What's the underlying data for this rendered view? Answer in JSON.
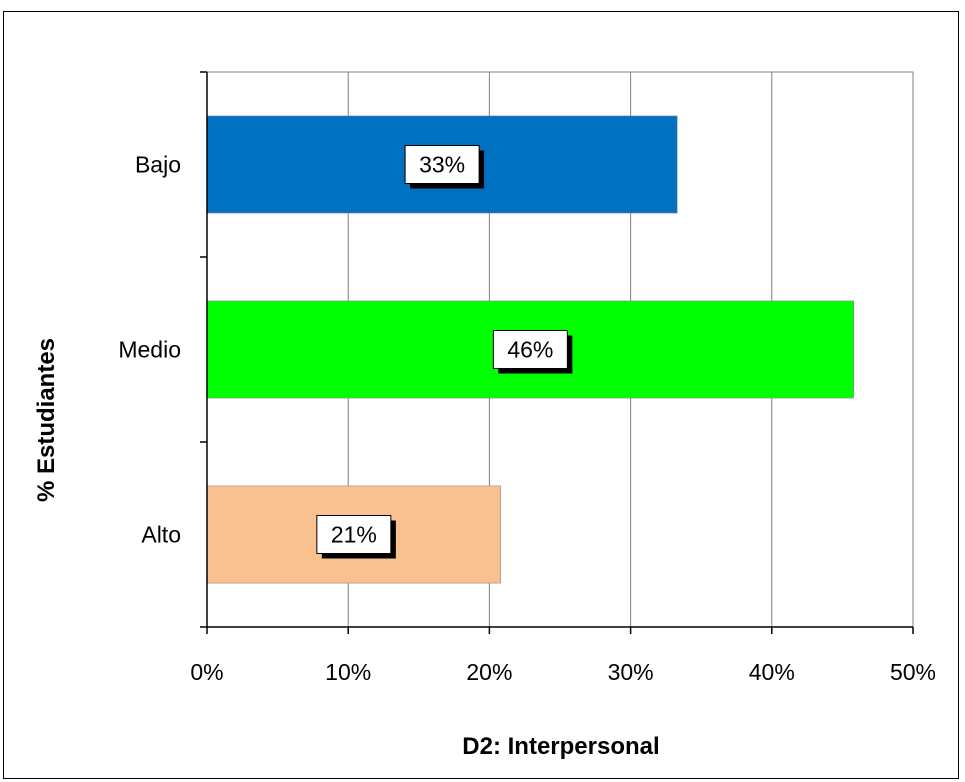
{
  "chart_data": {
    "type": "bar",
    "orientation": "horizontal",
    "categories": [
      "Bajo",
      "Medio",
      "Alto"
    ],
    "values": [
      33.3,
      45.8,
      20.8
    ],
    "data_labels": [
      "33%",
      "46%",
      "21%"
    ],
    "colors": [
      "#0070C0",
      "#00FF00",
      "#F9C090"
    ],
    "xlabel": "D2: Interpersonal",
    "ylabel": "% Estudiantes",
    "xlim": [
      0,
      50
    ],
    "xticks": [
      0,
      10,
      20,
      30,
      40,
      50
    ],
    "xtick_labels": [
      "0%",
      "10%",
      "20%",
      "30%",
      "40%",
      "50%"
    ],
    "grid": true,
    "legend": "none"
  }
}
